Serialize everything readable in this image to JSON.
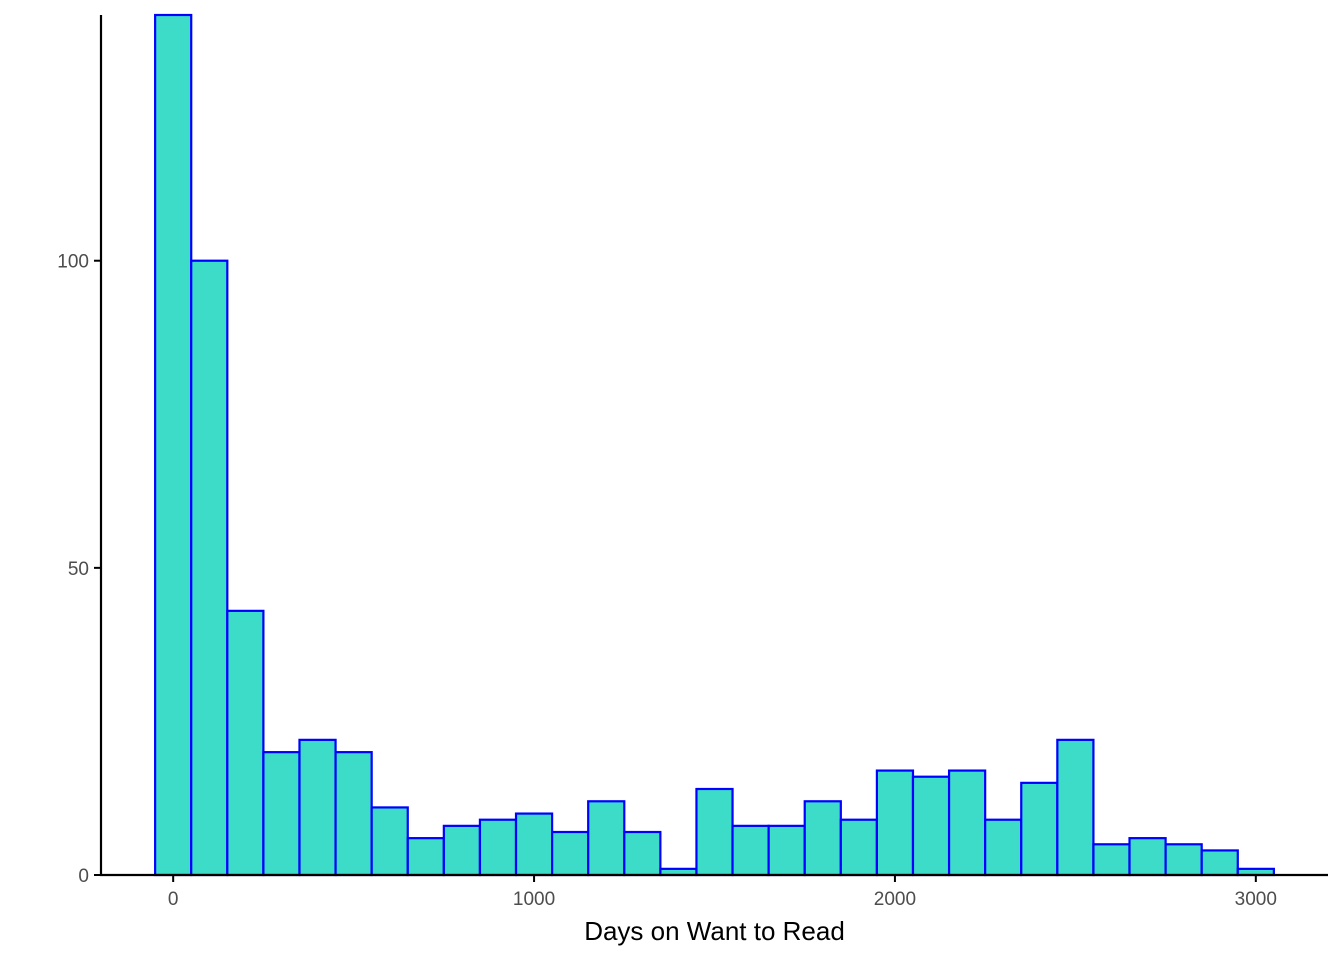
{
  "chart_data": {
    "type": "bar",
    "title": "",
    "xlabel": "Days on Want to Read",
    "ylabel": "",
    "bin_width": 100,
    "x": [
      0,
      100,
      200,
      300,
      400,
      500,
      600,
      700,
      800,
      900,
      1000,
      1100,
      1200,
      1300,
      1400,
      1500,
      1600,
      1700,
      1800,
      1900,
      2000,
      2100,
      2200,
      2300,
      2400,
      2500,
      2600,
      2700,
      2800,
      2900,
      3000
    ],
    "values": [
      140,
      100,
      43,
      20,
      22,
      20,
      11,
      6,
      8,
      9,
      10,
      7,
      12,
      7,
      1,
      14,
      8,
      8,
      12,
      9,
      17,
      16,
      17,
      9,
      15,
      22,
      5,
      6,
      5,
      4,
      1
    ],
    "xlim": [
      -200,
      3200
    ],
    "ylim": [
      0,
      140
    ],
    "x_ticks": [
      0,
      1000,
      2000,
      3000
    ],
    "x_tick_labels": [
      "0",
      "1000",
      "2000",
      "3000"
    ],
    "y_ticks": [
      0,
      50,
      100
    ],
    "y_tick_labels": [
      "0",
      "50",
      "100"
    ],
    "bar_fill": "#3ddcc8",
    "bar_stroke": "#0000ff",
    "grid": false
  }
}
